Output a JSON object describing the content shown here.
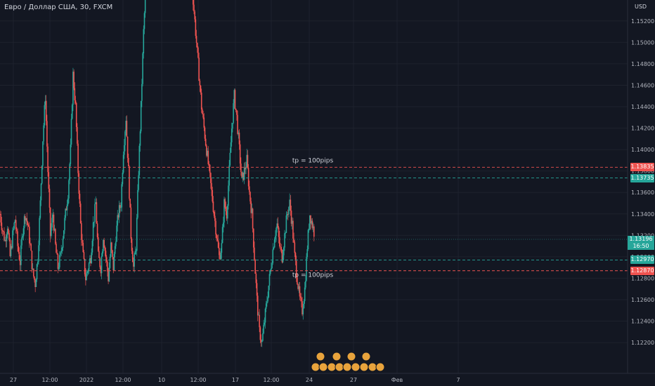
{
  "header": {
    "symbol_title": "Евро / Доллар США, 30, FXCM",
    "currency": "USD"
  },
  "last_price": {
    "value": "1.13196",
    "countdown": "16:50"
  },
  "colors": {
    "background": "#131722",
    "up": "#26a69a",
    "down": "#ef5350",
    "grid": "#1e222d",
    "red_line": "#ef5350",
    "green_line": "#26a69a"
  },
  "chart_data": {
    "type": "candlestick",
    "y_axis_ticks": [
      "1.15200",
      "1.15000",
      "1.14800",
      "1.14600",
      "1.14400",
      "1.14200",
      "1.14000",
      "1.13800",
      "1.13600",
      "1.13400",
      "1.13200",
      "1.13000",
      "1.12800",
      "1.12600",
      "1.12400",
      "1.12200"
    ],
    "ylim": [
      1.1212,
      1.1532
    ],
    "x_axis_ticks": [
      "27",
      "12:00",
      "2022",
      "12:00",
      "10",
      "12:00",
      "17",
      "12:00",
      "24",
      "27",
      "Фев",
      "7"
    ],
    "price_series": [
      1.134,
      1.1325,
      1.1315,
      1.133,
      1.13,
      1.132,
      1.1335,
      1.131,
      1.1295,
      1.1325,
      1.134,
      1.133,
      1.131,
      1.1285,
      1.1275,
      1.13,
      1.135,
      1.141,
      1.145,
      1.138,
      1.132,
      1.134,
      1.131,
      1.129,
      1.13,
      1.132,
      1.134,
      1.136,
      1.14,
      1.147,
      1.144,
      1.138,
      1.133,
      1.13,
      1.128,
      1.129,
      1.13,
      1.133,
      1.135,
      1.13,
      1.129,
      1.132,
      1.13,
      1.128,
      1.131,
      1.129,
      1.132,
      1.134,
      1.135,
      1.14,
      1.143,
      1.138,
      1.132,
      1.129,
      1.131,
      1.138,
      1.144,
      1.151,
      1.156,
      1.159,
      1.162,
      1.164,
      1.166,
      1.168,
      1.172,
      1.176,
      1.179,
      1.181,
      1.182,
      1.18,
      1.177,
      1.174,
      1.17,
      1.166,
      1.163,
      1.159,
      1.156,
      1.153,
      1.15,
      1.147,
      1.144,
      1.142,
      1.14,
      1.138,
      1.136,
      1.134,
      1.132,
      1.13,
      1.131,
      1.135,
      1.134,
      1.138,
      1.142,
      1.145,
      1.143,
      1.14,
      1.137,
      1.138,
      1.139,
      1.136,
      1.134,
      1.13,
      1.126,
      1.123,
      1.122,
      1.124,
      1.126,
      1.128,
      1.13,
      1.132,
      1.133,
      1.131,
      1.13,
      1.132,
      1.134,
      1.135,
      1.133,
      1.13,
      1.128,
      1.126,
      1.125,
      1.127,
      1.131,
      1.134,
      1.133,
      1.132
    ],
    "horizontal_levels": [
      {
        "price": 1.13835,
        "label": "1.13835",
        "color": "#ef5350"
      },
      {
        "price": 1.13735,
        "label": "1.13735",
        "color": "#26a69a"
      },
      {
        "price": 1.1297,
        "label": "1.12970",
        "color": "#26a69a"
      },
      {
        "price": 1.1287,
        "label": "1.12870",
        "color": "#ef5350"
      }
    ],
    "annotations": [
      {
        "text": "tp = 100pips",
        "price": 1.13835
      },
      {
        "text": "tp = 100pips",
        "price": 1.1287
      }
    ]
  }
}
